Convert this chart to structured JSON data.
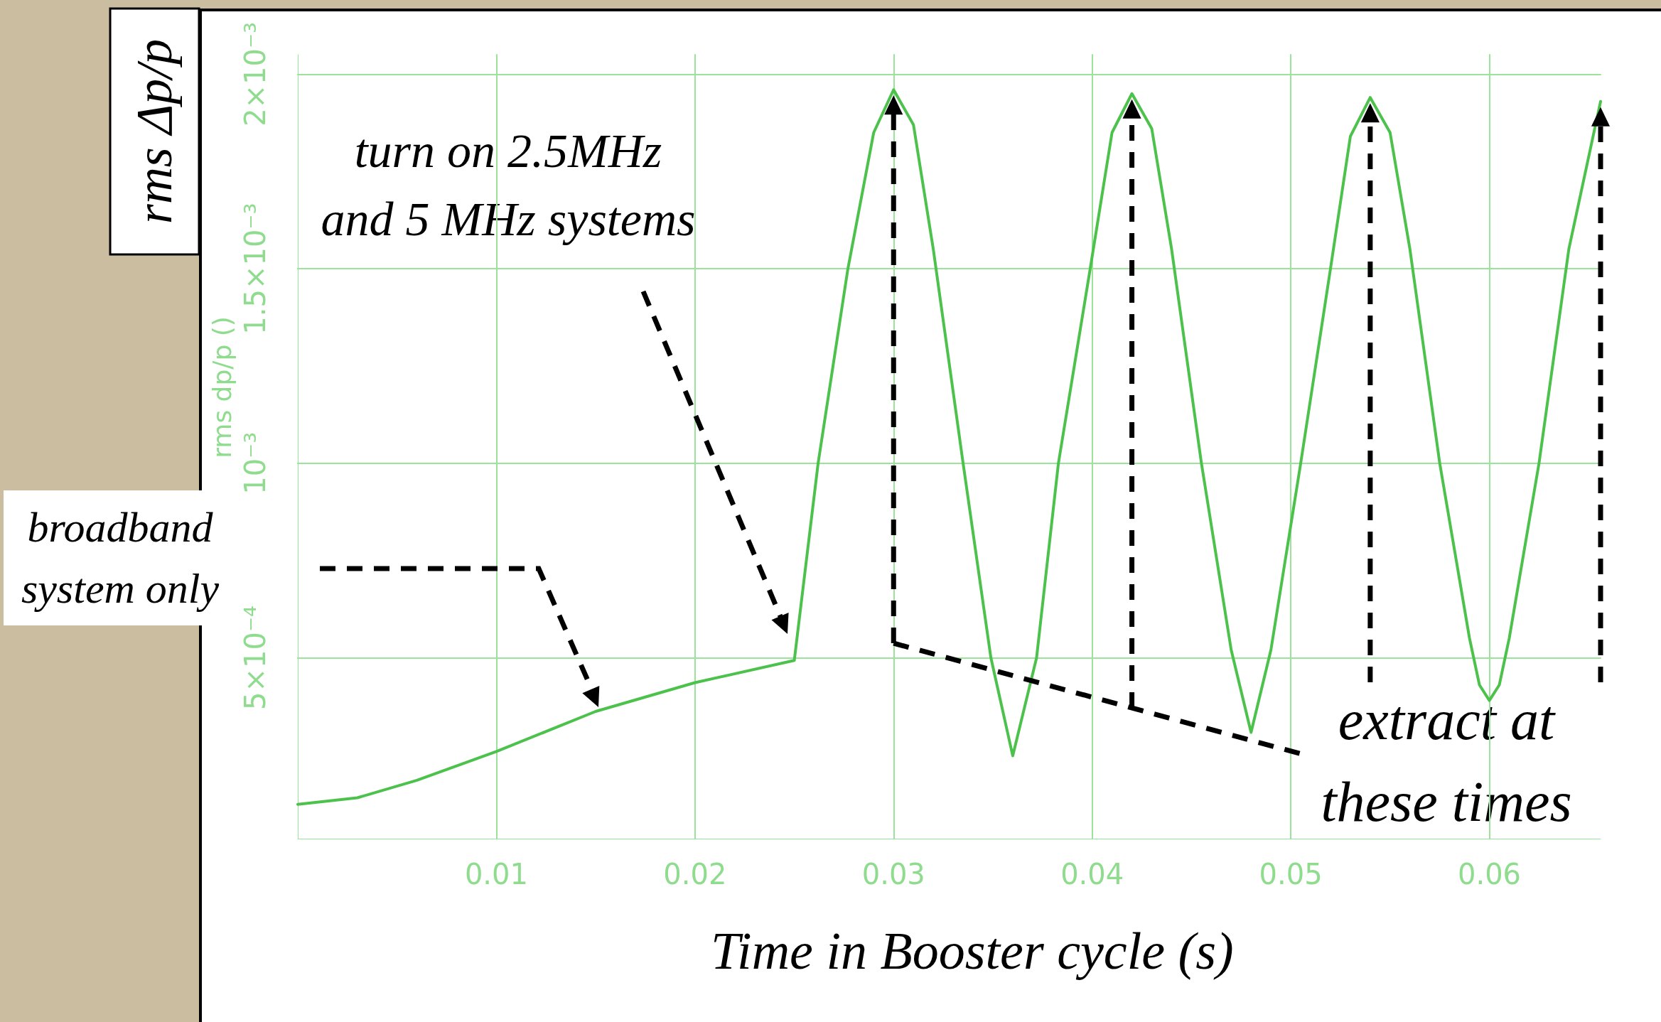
{
  "chart_data": {
    "type": "line",
    "xlabel": "Time in Booster cycle (s)",
    "ylabel": "rms Δp/p",
    "x": [
      0,
      0.003,
      0.006,
      0.01,
      0.015,
      0.02,
      0.025,
      0.0262,
      0.0277,
      0.029,
      0.03,
      0.031,
      0.032,
      0.0335,
      0.0349,
      0.036,
      0.0372,
      0.0383,
      0.0399,
      0.041,
      0.042,
      0.043,
      0.044,
      0.0455,
      0.047,
      0.048,
      0.049,
      0.0505,
      0.052,
      0.053,
      0.054,
      0.055,
      0.056,
      0.0575,
      0.059,
      0.0595,
      0.06,
      0.0605,
      0.061,
      0.0625,
      0.064,
      0.0656
    ],
    "series": [
      {
        "color": "#4cc24c",
        "values": [
          0.000123,
          0.00014,
          0.000185,
          0.000259,
          0.000362,
          0.000436,
          0.000493,
          0.001,
          0.0015,
          0.00185,
          0.00196,
          0.00187,
          0.00155,
          0.001,
          0.0005,
          0.000248,
          0.0005,
          0.001,
          0.0015,
          0.00185,
          0.00195,
          0.00186,
          0.00155,
          0.001,
          0.00052,
          0.000308,
          0.00052,
          0.001,
          0.0015,
          0.00184,
          0.00194,
          0.00185,
          0.00155,
          0.001,
          0.00055,
          0.00043,
          0.00039,
          0.00043,
          0.00055,
          0.001,
          0.00155,
          0.00193
        ]
      }
    ],
    "xlim": [
      0,
      0.0656
    ],
    "xticks": [
      0.01,
      0.02,
      0.03,
      0.04,
      0.05,
      0.06
    ],
    "ylim": [
      3.5e-05,
      0.00205
    ],
    "yticks": [
      {
        "value": 0.0005,
        "label": "5×10⁻⁴"
      },
      {
        "value": 0.001,
        "label": "10⁻³"
      },
      {
        "value": 0.0015,
        "label": "1.5×10⁻³"
      },
      {
        "value": 0.002,
        "label": "2×10⁻³"
      }
    ],
    "grid": true,
    "marker": "none",
    "line_style": "solid",
    "annotations": [
      "turn on 2.5MHz\nand 5 MHz systems",
      "broadband\nsystem only",
      "extract at\nthese times",
      "rms dp/p ()"
    ]
  }
}
